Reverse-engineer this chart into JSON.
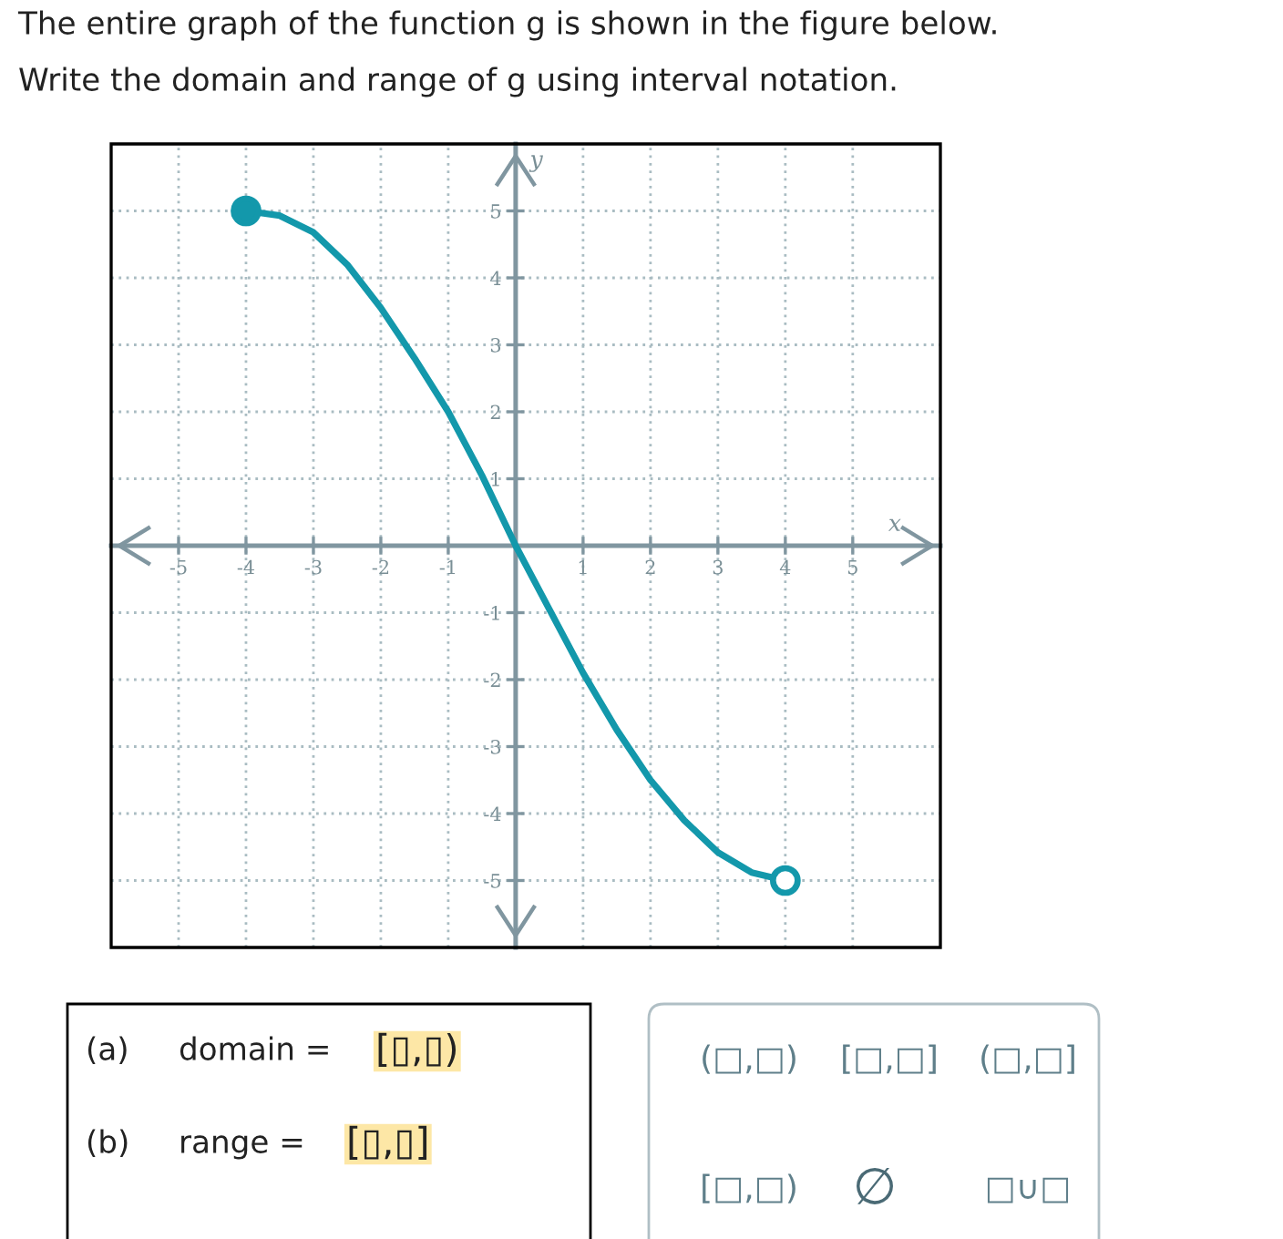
{
  "chart_data": {
    "type": "line",
    "title": "The entire graph of the function g is shown in the figure below.",
    "subtitle": "Write the domain and range of g using interval notation.",
    "xlabel": "x",
    "ylabel": "y",
    "xlim": [
      -6,
      6.3
    ],
    "ylim": [
      -6,
      6
    ],
    "xticks": [
      -5,
      -4,
      -3,
      -2,
      -1,
      1,
      2,
      3,
      4,
      5
    ],
    "yticks": [
      -5,
      -4,
      -3,
      -2,
      -1,
      1,
      2,
      3,
      4,
      5
    ],
    "grid": true,
    "series": [
      {
        "color": "#1398ab",
        "marker": "none",
        "x": [
          -4,
          -3.5,
          -3,
          -2.5,
          -2,
          -1.5,
          -1,
          -0.5,
          0,
          0.5,
          1,
          1.5,
          2,
          2.5,
          3,
          3.5,
          4
        ],
        "values": [
          5,
          4.93,
          4.68,
          4.2,
          3.55,
          2.8,
          2.0,
          1.05,
          0,
          -0.95,
          -1.9,
          -2.75,
          -3.5,
          -4.1,
          -4.58,
          -4.88,
          -5
        ]
      },
      {
        "type": "scatter",
        "color": "#1398ab",
        "marker": "circle",
        "x": [
          -4
        ],
        "values": [
          5
        ]
      },
      {
        "type": "scatter",
        "color": "#1398ab",
        "colors": [
          "#ffffff"
        ],
        "marker": "circle",
        "x": [
          4
        ],
        "values": [
          -5
        ]
      }
    ],
    "annotations": [
      "(a)",
      "domain =",
      "[▯,▯)",
      "(b)",
      "range =",
      "[▯,▯]",
      "(□,□)",
      "[□,□]",
      "(□,□]",
      "[□,□)",
      "∅",
      "□∪□"
    ]
  }
}
